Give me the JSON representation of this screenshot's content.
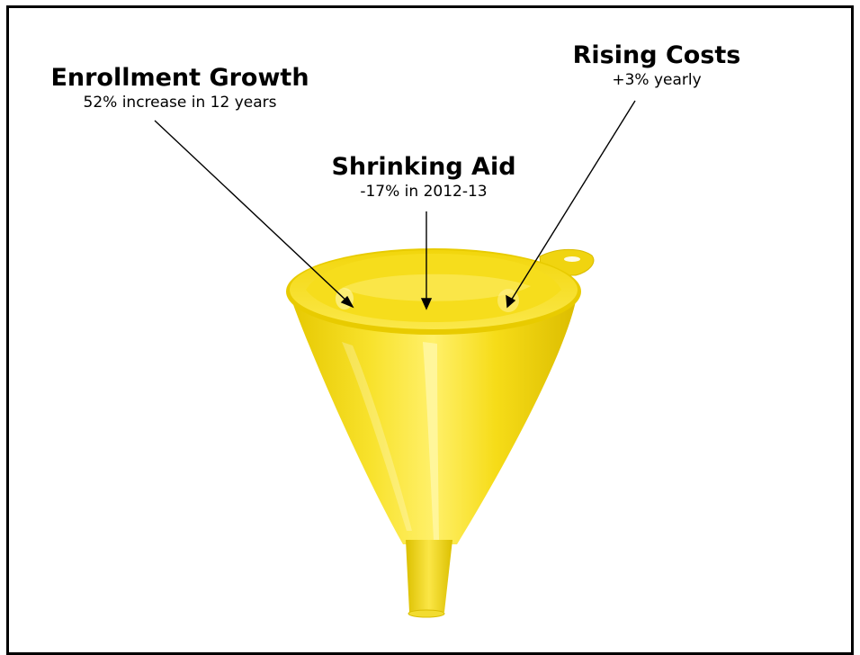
{
  "pressures": [
    {
      "title": "Enrollment Growth",
      "detail": "52% increase in 12 years"
    },
    {
      "title": "Shrinking Aid",
      "detail": "-17% in 2012-13"
    },
    {
      "title": "Rising Costs",
      "detail": "+3% yearly"
    }
  ],
  "colors": {
    "funnel": "#f4dc16",
    "funnel_highlight": "#fff37a",
    "funnel_shadow": "#d8b900",
    "frame": "#000000"
  },
  "icons": {
    "funnel": "funnel-icon"
  }
}
